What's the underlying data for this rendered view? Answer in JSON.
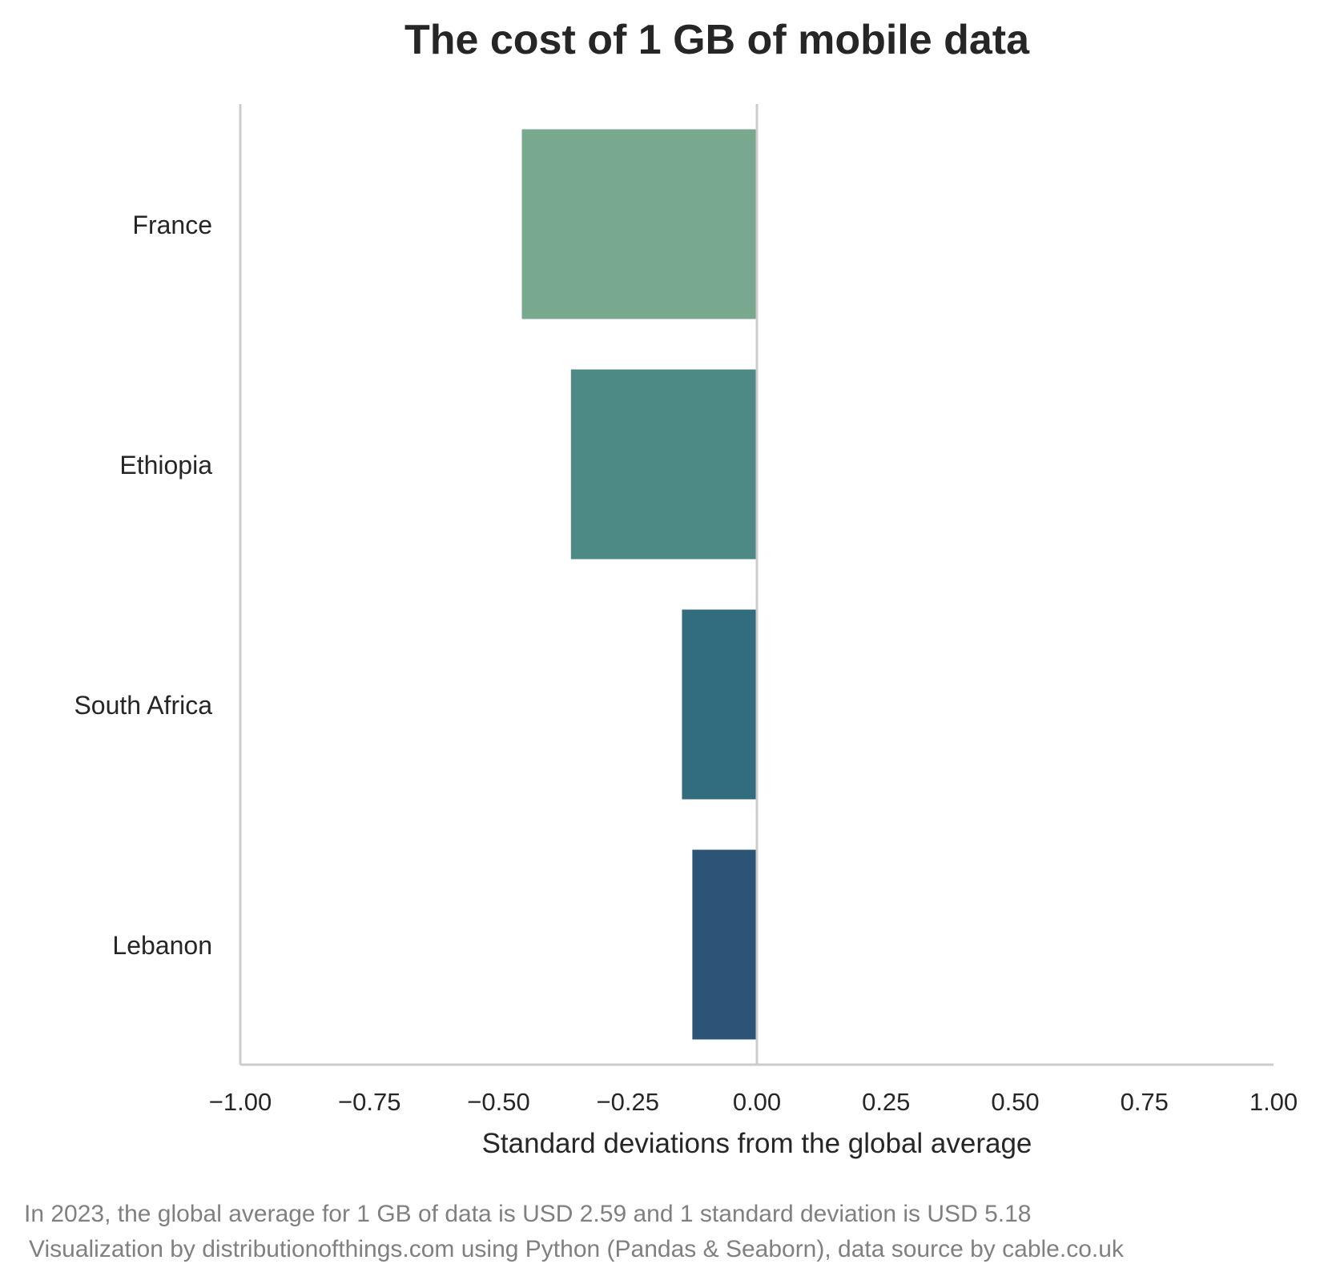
{
  "chart_data": {
    "type": "bar",
    "orientation": "horizontal",
    "title": "The cost of 1 GB of mobile data",
    "xlabel": "Standard deviations from the global average",
    "ylabel": "",
    "categories": [
      "France",
      "Ethiopia",
      "South Africa",
      "Lebanon"
    ],
    "values": [
      -0.455,
      -0.36,
      -0.145,
      -0.125
    ],
    "colors": [
      "#78a98f",
      "#4e8a85",
      "#316d7e",
      "#2c5477"
    ],
    "xlim": [
      -1.0,
      1.0
    ],
    "xticks": [
      -1.0,
      -0.75,
      -0.5,
      -0.25,
      0.0,
      0.25,
      0.5,
      0.75,
      1.0
    ],
    "xtick_labels": [
      "−1.00",
      "−0.75",
      "−0.50",
      "−0.25",
      "0.00",
      "0.25",
      "0.50",
      "0.75",
      "1.00"
    ],
    "grid": false,
    "reference_line": 0
  },
  "captions": {
    "line1": "In 2023, the global average for 1 GB of data is USD 2.59 and 1 standard deviation is USD 5.18",
    "line2": "Visualization by distributionofthings.com using Python (Pandas & Seaborn), data source by cable.co.uk"
  }
}
